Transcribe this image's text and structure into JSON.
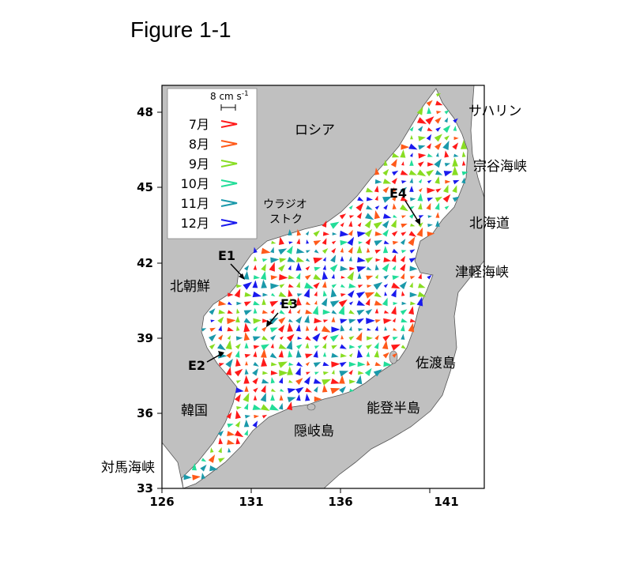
{
  "figure_title": "Figure 1-1",
  "axes": {
    "x_ticks": [
      "126",
      "131",
      "136",
      "141"
    ],
    "y_ticks": [
      "33",
      "36",
      "39",
      "42",
      "45",
      "48"
    ],
    "x_range": [
      126,
      145
    ],
    "y_range": [
      33,
      49.3
    ]
  },
  "colors": {
    "land": "#c0c0c0",
    "sea": "#ffffff",
    "jul": "#ff1a1a",
    "aug": "#ff5a1a",
    "sep": "#88dd22",
    "oct": "#22dd99",
    "nov": "#1a99aa",
    "dec": "#1a1aee"
  },
  "legend": {
    "scale_label": "8 cm s",
    "scale_exp": "-1",
    "items": [
      {
        "label": "7月",
        "color": "#ff1a1a"
      },
      {
        "label": "8月",
        "color": "#ff5a1a"
      },
      {
        "label": "9月",
        "color": "#88dd22"
      },
      {
        "label": "10月",
        "color": "#22dd99"
      },
      {
        "label": "11月",
        "color": "#1a99aa"
      },
      {
        "label": "12月",
        "color": "#1a1aee"
      }
    ]
  },
  "places": {
    "russia": "ロシア",
    "sakhalin": "サハリン",
    "soya": "宗谷海峡",
    "hokkaido": "北海道",
    "tsugaru": "津軽海峡",
    "vladivostok_1": "ウラジオ",
    "vladivostok_2": "ストク",
    "north_korea": "北朝鮮",
    "sado": "佐渡島",
    "korea": "韓国",
    "noto": "能登半島",
    "oki": "隠岐島",
    "tsushima": "対馬海峡"
  },
  "eddies": {
    "e1": "E1",
    "e2": "E2",
    "e3": "E3",
    "e4": "E4"
  }
}
